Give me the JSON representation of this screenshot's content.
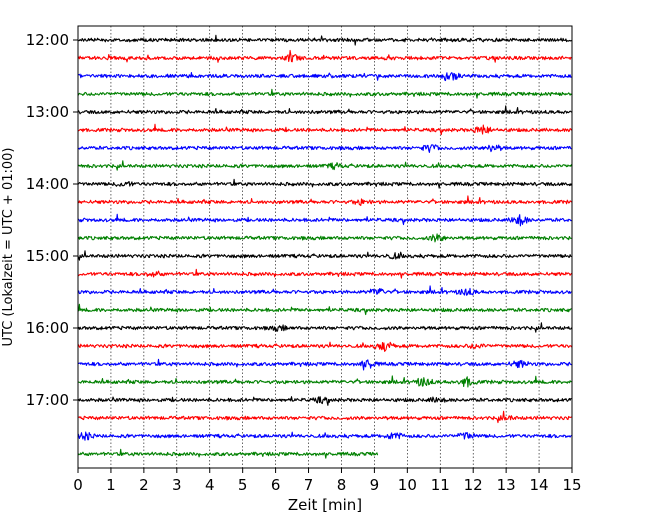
{
  "chart_data": {
    "type": "line",
    "xlabel": "Zeit  [min]",
    "ylabel": "UTC (Lokalzeit = UTC + 01:00)",
    "xlim": [
      0,
      15
    ],
    "x_ticks": [
      "0",
      "1",
      "2",
      "3",
      "4",
      "5",
      "6",
      "7",
      "8",
      "9",
      "10",
      "11",
      "12",
      "13",
      "14",
      "15"
    ],
    "y_ticks": [
      "12:00",
      "13:00",
      "14:00",
      "15:00",
      "16:00",
      "17:00"
    ],
    "grid_x": true,
    "grid_y": false,
    "colors": [
      "#000000",
      "#ff0000",
      "#0000ff",
      "#008000"
    ],
    "traces": [
      {
        "start": "12:00",
        "color": "#000000",
        "end_min": 15
      },
      {
        "start": "12:15",
        "color": "#ff0000",
        "end_min": 15
      },
      {
        "start": "12:30",
        "color": "#0000ff",
        "end_min": 15
      },
      {
        "start": "12:45",
        "color": "#008000",
        "end_min": 15
      },
      {
        "start": "13:00",
        "color": "#000000",
        "end_min": 15
      },
      {
        "start": "13:15",
        "color": "#ff0000",
        "end_min": 15
      },
      {
        "start": "13:30",
        "color": "#0000ff",
        "end_min": 15
      },
      {
        "start": "13:45",
        "color": "#008000",
        "end_min": 15
      },
      {
        "start": "14:00",
        "color": "#000000",
        "end_min": 15
      },
      {
        "start": "14:15",
        "color": "#ff0000",
        "end_min": 15
      },
      {
        "start": "14:30",
        "color": "#0000ff",
        "end_min": 15
      },
      {
        "start": "14:45",
        "color": "#008000",
        "end_min": 15
      },
      {
        "start": "15:00",
        "color": "#000000",
        "end_min": 15
      },
      {
        "start": "15:15",
        "color": "#ff0000",
        "end_min": 15
      },
      {
        "start": "15:30",
        "color": "#0000ff",
        "end_min": 15
      },
      {
        "start": "15:45",
        "color": "#008000",
        "end_min": 15
      },
      {
        "start": "16:00",
        "color": "#000000",
        "end_min": 15
      },
      {
        "start": "16:15",
        "color": "#ff0000",
        "end_min": 15
      },
      {
        "start": "16:30",
        "color": "#0000ff",
        "end_min": 15
      },
      {
        "start": "16:45",
        "color": "#008000",
        "end_min": 15
      },
      {
        "start": "17:00",
        "color": "#000000",
        "end_min": 15
      },
      {
        "start": "17:15",
        "color": "#ff0000",
        "end_min": 15
      },
      {
        "start": "17:30",
        "color": "#0000ff",
        "end_min": 15
      },
      {
        "start": "17:45",
        "color": "#008000",
        "end_min": 9.1
      }
    ],
    "bursts": [
      [],
      [
        [
          6.5,
          3
        ]
      ],
      [
        [
          11.3,
          5
        ]
      ],
      [],
      [],
      [
        [
          12.3,
          4
        ]
      ],
      [
        [
          10.7,
          3
        ],
        [
          12.6,
          3
        ]
      ],
      [
        [
          7.8,
          2
        ]
      ],
      [
        [
          1.4,
          2
        ]
      ],
      [
        [
          8.6,
          2
        ]
      ],
      [
        [
          13.4,
          5
        ]
      ],
      [
        [
          10.9,
          3
        ]
      ],
      [
        [
          9.6,
          2
        ]
      ],
      [
        [
          2.3,
          2
        ]
      ],
      [
        [
          9.1,
          3
        ],
        [
          11.8,
          3
        ]
      ],
      [],
      [
        [
          6.1,
          2
        ]
      ],
      [
        [
          9.3,
          5
        ],
        [
          12.1,
          2
        ]
      ],
      [
        [
          8.8,
          4
        ],
        [
          13.4,
          3
        ]
      ],
      [
        [
          10.5,
          4
        ],
        [
          11.8,
          4
        ]
      ],
      [
        [
          7.4,
          2
        ],
        [
          10.9,
          2
        ]
      ],
      [
        [
          13.0,
          2
        ]
      ],
      [
        [
          0.2,
          3
        ],
        [
          9.6,
          3
        ],
        [
          11.8,
          3
        ]
      ],
      []
    ]
  }
}
